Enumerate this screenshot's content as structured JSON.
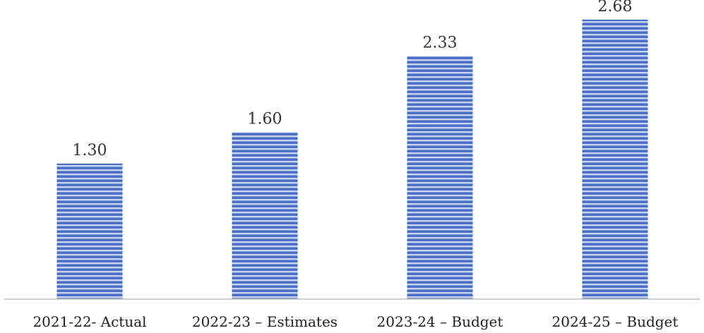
{
  "chart_data": {
    "type": "bar",
    "title": "",
    "xlabel": "",
    "ylabel": "",
    "categories": [
      "2021-22- Actual",
      "2022-23 – Estimates",
      "2023-24 – Budget",
      "2024-25 – Budget"
    ],
    "values": [
      1.3,
      1.6,
      2.33,
      2.68
    ],
    "value_labels": [
      "1.30",
      "1.60",
      "2.33",
      "2.68"
    ],
    "ylim": [
      0,
      2.8
    ],
    "grid": false,
    "legend": "none",
    "bar_color": "#4a6fc4",
    "bar_stripe_color": "#c8d4f0"
  }
}
